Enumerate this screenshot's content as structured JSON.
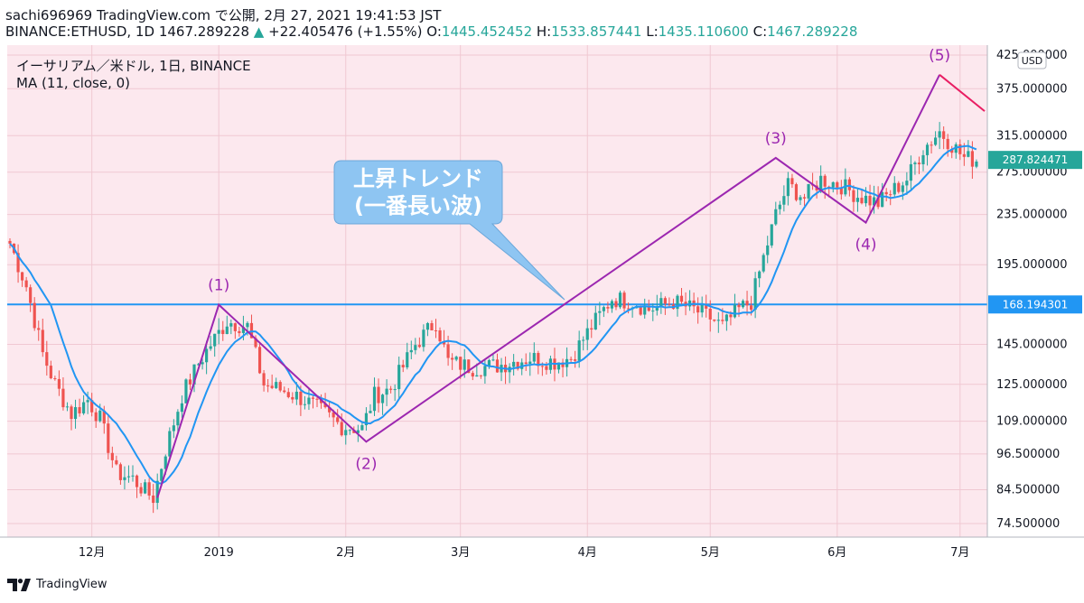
{
  "header": {
    "line1": "sachi696969 TradingView.com で公開, 2月 27, 2021 19:41:53 JST",
    "symbol_interval": "BINANCE:ETHUSD, 1D",
    "last_price": "1467.289228",
    "up_arrow": "▲",
    "change": "+22.405476 (+1.55%)",
    "o_label": "O:",
    "o_value": "1445.452452",
    "h_label": "H:",
    "h_value": "1533.857441",
    "l_label": "L:",
    "l_value": "1435.110600",
    "c_label": "C:",
    "c_value": "1467.289228"
  },
  "legend": {
    "series_title": "イーサリアム／米ドル, 1日, BINANCE",
    "ma_title": "MA (11, close, 0)"
  },
  "currency_badge": "USD",
  "price_tags": {
    "current": "287.824471",
    "line": "168.194301"
  },
  "annotation": {
    "line1": "上昇トレンド",
    "line2": "(一番長い波)"
  },
  "wave_labels": [
    "(1)",
    "(2)",
    "(3)",
    "(4)",
    "(5)"
  ],
  "footer": {
    "brand": "TradingView"
  },
  "colors": {
    "background": "#fce8ee",
    "up": "#26a69a",
    "down": "#ef5350",
    "ma": "#2196f3",
    "wave": "#9c27b0",
    "wave_last": "#e91e63",
    "hline": "#2196f3",
    "callout": "#8ec5f2"
  },
  "chart_data": {
    "type": "candlestick",
    "scale": "log",
    "y_ticks": [
      425,
      375,
      315,
      275,
      235,
      195,
      168.194301,
      145,
      125,
      109,
      96.5,
      84.5,
      74.5
    ],
    "y_tick_labels": [
      "425.000000",
      "375.000000",
      "315.000000",
      "275.000000",
      "235.000000",
      "195.000000",
      "168.194301",
      "145.000000",
      "125.000000",
      "109.000000",
      "96.500000",
      "84.500000",
      "74.500000"
    ],
    "x_ticks": [
      "12月",
      "2019",
      "2月",
      "3月",
      "4月",
      "5月",
      "6月",
      "7月"
    ],
    "x_tick_dates": [
      "2018-12-01",
      "2019-01-01",
      "2019-02-01",
      "2019-03-01",
      "2019-04-01",
      "2019-05-01",
      "2019-06-01",
      "2019-07-01"
    ],
    "start_date": "2018-11-11",
    "horizontal_line": 168.194301,
    "current_price": 287.824471,
    "close_anchors": [
      [
        "2018-11-11",
        211
      ],
      [
        "2018-11-15",
        180
      ],
      [
        "2018-11-19",
        140
      ],
      [
        "2018-11-22",
        125
      ],
      [
        "2018-11-26",
        112
      ],
      [
        "2018-11-30",
        118
      ],
      [
        "2018-12-03",
        110
      ],
      [
        "2018-12-07",
        90
      ],
      [
        "2018-12-11",
        88
      ],
      [
        "2018-12-14",
        84
      ],
      [
        "2018-12-16",
        82
      ],
      [
        "2018-12-19",
        98
      ],
      [
        "2018-12-23",
        120
      ],
      [
        "2018-12-27",
        135
      ],
      [
        "2018-12-30",
        145
      ],
      [
        "2019-01-03",
        158
      ],
      [
        "2019-01-08",
        155
      ],
      [
        "2019-01-12",
        125
      ],
      [
        "2019-01-17",
        122
      ],
      [
        "2019-01-22",
        118
      ],
      [
        "2019-01-27",
        112
      ],
      [
        "2019-01-31",
        107
      ],
      [
        "2019-02-05",
        106
      ],
      [
        "2019-02-08",
        120
      ],
      [
        "2019-02-12",
        123
      ],
      [
        "2019-02-18",
        145
      ],
      [
        "2019-02-23",
        158
      ],
      [
        "2019-02-26",
        136
      ],
      [
        "2019-03-04",
        133
      ],
      [
        "2019-03-10",
        134
      ],
      [
        "2019-03-18",
        138
      ],
      [
        "2019-03-24",
        136
      ],
      [
        "2019-03-28",
        138
      ],
      [
        "2019-04-02",
        155
      ],
      [
        "2019-04-07",
        172
      ],
      [
        "2019-04-12",
        170
      ],
      [
        "2019-04-16",
        165
      ],
      [
        "2019-04-22",
        170
      ],
      [
        "2019-04-27",
        165
      ],
      [
        "2019-05-01",
        160
      ],
      [
        "2019-05-04",
        155
      ],
      [
        "2019-05-08",
        165
      ],
      [
        "2019-05-11",
        170
      ],
      [
        "2019-05-14",
        200
      ],
      [
        "2019-05-17",
        235
      ],
      [
        "2019-05-20",
        262
      ],
      [
        "2019-05-24",
        250
      ],
      [
        "2019-05-28",
        268
      ],
      [
        "2019-06-02",
        262
      ],
      [
        "2019-06-06",
        252
      ],
      [
        "2019-06-11",
        245
      ],
      [
        "2019-06-14",
        255
      ],
      [
        "2019-06-18",
        268
      ],
      [
        "2019-06-22",
        300
      ],
      [
        "2019-06-26",
        320
      ],
      [
        "2019-06-29",
        305
      ],
      [
        "2019-07-02",
        290
      ],
      [
        "2019-07-05",
        288
      ]
    ],
    "ma_period": 11,
    "elliott_waves": [
      {
        "label": "start",
        "date": "2018-12-17",
        "price": 82
      },
      {
        "label": "(1)",
        "date": "2019-01-01",
        "price": 168
      },
      {
        "label": "(2)",
        "date": "2019-02-06",
        "price": 101
      },
      {
        "label": "(3)",
        "date": "2019-05-17",
        "price": 290
      },
      {
        "label": "(4)",
        "date": "2019-06-08",
        "price": 228
      },
      {
        "label": "(5)",
        "date": "2019-06-26",
        "price": 395
      },
      {
        "label": "end",
        "date": "2019-07-07",
        "price": 345
      }
    ]
  }
}
